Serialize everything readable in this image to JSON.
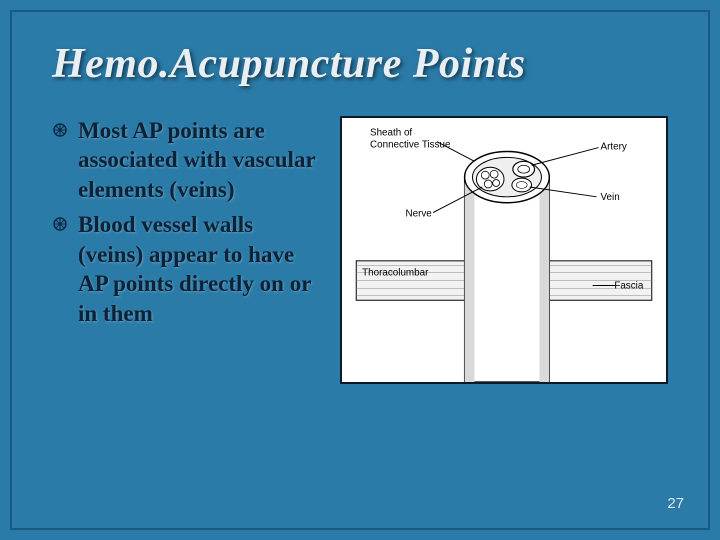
{
  "slide": {
    "title": "Hemo.Acupuncture  Points",
    "bullets": [
      "Most AP points are associated with vascular elements (veins)",
      "Blood vessel walls (veins) appear to have AP points directly on or in them"
    ],
    "page_number": "27",
    "background_color": "#2b7ba8",
    "border_color": "#1a5a7e",
    "title_color": "#e8eef2",
    "bullet_text_color": "#0c2236",
    "bullet_glyph_color": "#0c2a44",
    "title_fontsize": 42,
    "bullet_fontsize": 23
  },
  "figure": {
    "type": "diagram",
    "background": "#ffffff",
    "stroke": "#000000",
    "texture_fill": "#d9d9d9",
    "labels": {
      "sheath": "Sheath of Connective Tissue",
      "artery": "Artery",
      "nerve": "Nerve",
      "vein": "Vein",
      "thoracolumbar": "Thoracolumbar",
      "fascia": "Fascia"
    }
  }
}
